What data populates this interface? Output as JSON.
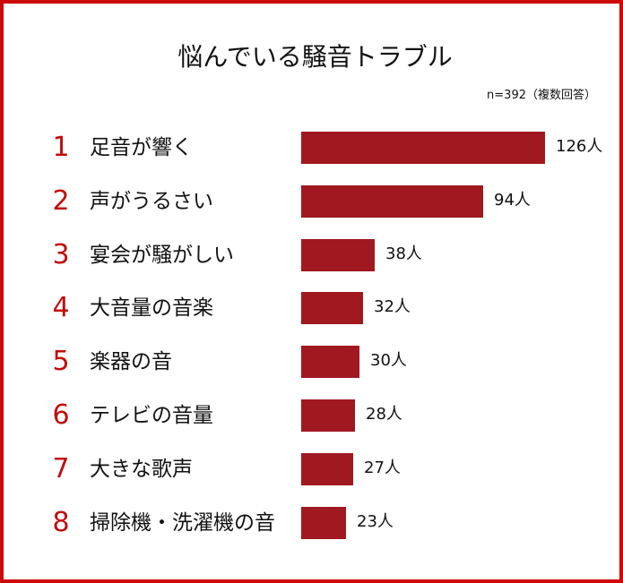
{
  "title": "悩んでいる騒音トラブル",
  "note": "n=392（複数回答）",
  "colors": {
    "bar": "#a01820",
    "rank": "#c00d0d",
    "border": "#cc0a0a"
  },
  "unit": "人",
  "rows": [
    {
      "rank": "1",
      "label": "足音が響く",
      "value": 126,
      "value_label": "126人"
    },
    {
      "rank": "2",
      "label": "声がうるさい",
      "value": 94,
      "value_label": "94人"
    },
    {
      "rank": "3",
      "label": "宴会が騒がしい",
      "value": 38,
      "value_label": "38人"
    },
    {
      "rank": "4",
      "label": "大音量の音楽",
      "value": 32,
      "value_label": "32人"
    },
    {
      "rank": "5",
      "label": "楽器の音",
      "value": 30,
      "value_label": "30人"
    },
    {
      "rank": "6",
      "label": "テレビの音量",
      "value": 28,
      "value_label": "28人"
    },
    {
      "rank": "7",
      "label": "大きな歌声",
      "value": 27,
      "value_label": "27人"
    },
    {
      "rank": "8",
      "label": "掃除機・洗濯機の音",
      "value": 23,
      "value_label": "23人"
    }
  ],
  "chart_data": {
    "type": "bar",
    "orientation": "horizontal",
    "title": "悩んでいる騒音トラブル",
    "subtitle": "n=392（複数回答）",
    "categories": [
      "足音が響く",
      "声がうるさい",
      "宴会が騒がしい",
      "大音量の音楽",
      "楽器の音",
      "テレビの音量",
      "大きな歌声",
      "掃除機・洗濯機の音"
    ],
    "values": [
      126,
      94,
      38,
      32,
      30,
      28,
      27,
      23
    ],
    "data_labels": [
      "126人",
      "94人",
      "38人",
      "32人",
      "30人",
      "28人",
      "27人",
      "23人"
    ],
    "ranks": [
      1,
      2,
      3,
      4,
      5,
      6,
      7,
      8
    ],
    "xlabel": "",
    "ylabel": "",
    "grid": false,
    "legend": null
  }
}
